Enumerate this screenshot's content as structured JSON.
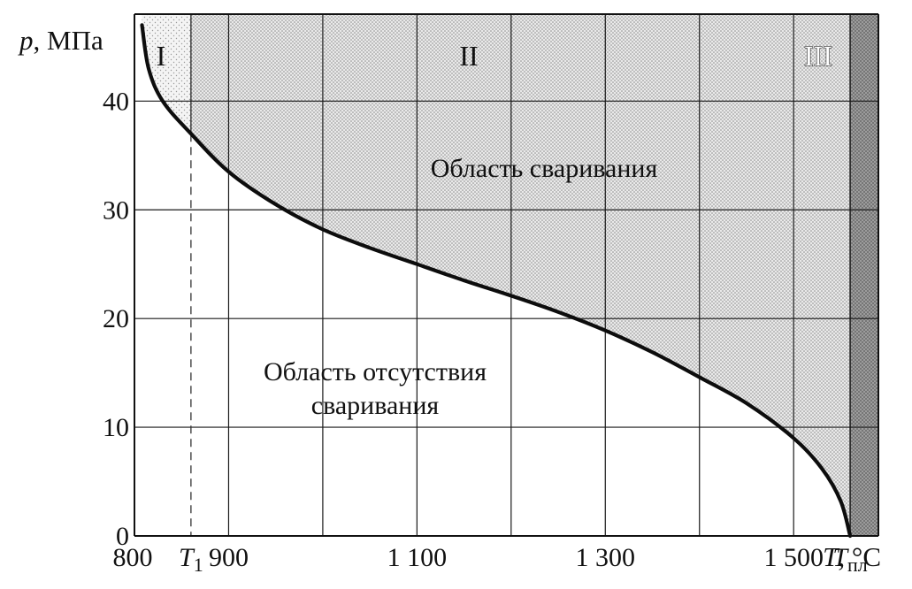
{
  "chart_data": {
    "type": "area",
    "title": "",
    "ylabel": {
      "var": "p",
      "unit": ", МПа"
    },
    "xlabel": {
      "var": "T",
      "unit": ", °C"
    },
    "xlim": [
      800,
      1590
    ],
    "ylim": [
      0,
      48
    ],
    "x_ticks": [
      {
        "value": 800,
        "label": "800"
      },
      {
        "value": 900,
        "label": "900"
      },
      {
        "value": 1100,
        "label": "1 100"
      },
      {
        "value": 1300,
        "label": "1 300"
      },
      {
        "value": 1500,
        "label": "1 500"
      }
    ],
    "y_ticks": [
      {
        "value": 0,
        "label": "0"
      },
      {
        "value": 10,
        "label": "10"
      },
      {
        "value": 20,
        "label": "20"
      },
      {
        "value": 30,
        "label": "30"
      },
      {
        "value": 40,
        "label": "40"
      }
    ],
    "special_x": {
      "T1": {
        "value": 860,
        "var": "T",
        "sub": "1"
      },
      "Tpl": {
        "value": 1560,
        "var": "T",
        "sub": "пл"
      }
    },
    "regions": [
      {
        "label": "I",
        "x_from": 808,
        "x_to": 860,
        "shade": "light"
      },
      {
        "label": "II",
        "x_from": 860,
        "x_to": 1560,
        "shade": "medium"
      },
      {
        "label": "III",
        "x_from": 1560,
        "x_to": 1590,
        "shade": "dark"
      }
    ],
    "areas": {
      "welding": "Область сваривания",
      "no_welding_line1": "Область отсутствия",
      "no_welding_line2": "сваривания"
    },
    "curve": {
      "x": [
        808,
        815,
        830,
        860,
        900,
        950,
        1000,
        1050,
        1100,
        1150,
        1200,
        1250,
        1300,
        1350,
        1400,
        1450,
        1500,
        1530,
        1550,
        1560
      ],
      "y": [
        47,
        43,
        40,
        37,
        33.5,
        30.5,
        28.2,
        26.5,
        25,
        23.5,
        22.1,
        20.6,
        18.9,
        16.9,
        14.6,
        12.2,
        9,
        6.2,
        3.2,
        0
      ]
    },
    "grid": true
  }
}
